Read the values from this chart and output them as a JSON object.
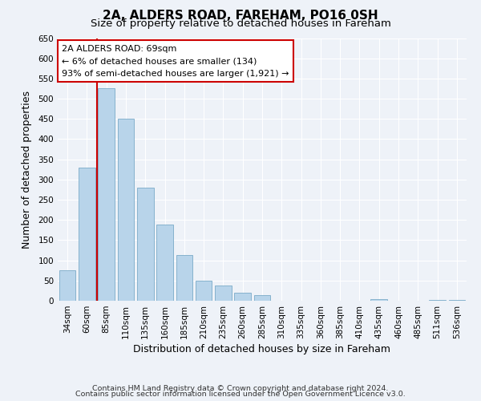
{
  "title": "2A, ALDERS ROAD, FAREHAM, PO16 0SH",
  "subtitle": "Size of property relative to detached houses in Fareham",
  "xlabel": "Distribution of detached houses by size in Fareham",
  "ylabel": "Number of detached properties",
  "bar_labels": [
    "34sqm",
    "60sqm",
    "85sqm",
    "110sqm",
    "135sqm",
    "160sqm",
    "185sqm",
    "210sqm",
    "235sqm",
    "260sqm",
    "285sqm",
    "310sqm",
    "335sqm",
    "360sqm",
    "385sqm",
    "410sqm",
    "435sqm",
    "460sqm",
    "485sqm",
    "511sqm",
    "536sqm"
  ],
  "bar_values": [
    75,
    330,
    525,
    450,
    280,
    188,
    113,
    50,
    37,
    20,
    13,
    0,
    0,
    0,
    0,
    0,
    3,
    0,
    0,
    2,
    2
  ],
  "bar_color": "#b8d4ea",
  "bar_edge_color": "#7aaac8",
  "highlight_line_color": "#cc0000",
  "annotation_title": "2A ALDERS ROAD: 69sqm",
  "annotation_line1": "← 6% of detached houses are smaller (134)",
  "annotation_line2": "93% of semi-detached houses are larger (1,921) →",
  "annotation_box_facecolor": "#ffffff",
  "annotation_box_edgecolor": "#cc0000",
  "ylim": [
    0,
    650
  ],
  "yticks": [
    0,
    50,
    100,
    150,
    200,
    250,
    300,
    350,
    400,
    450,
    500,
    550,
    600,
    650
  ],
  "footer1": "Contains HM Land Registry data © Crown copyright and database right 2024.",
  "footer2": "Contains public sector information licensed under the Open Government Licence v3.0.",
  "title_fontsize": 11,
  "subtitle_fontsize": 9.5,
  "axis_label_fontsize": 9,
  "tick_fontsize": 7.5,
  "annotation_fontsize": 8,
  "footer_fontsize": 6.8,
  "bg_color": "#eef2f8",
  "plot_bg_color": "#eef2f8",
  "grid_color": "#ffffff"
}
